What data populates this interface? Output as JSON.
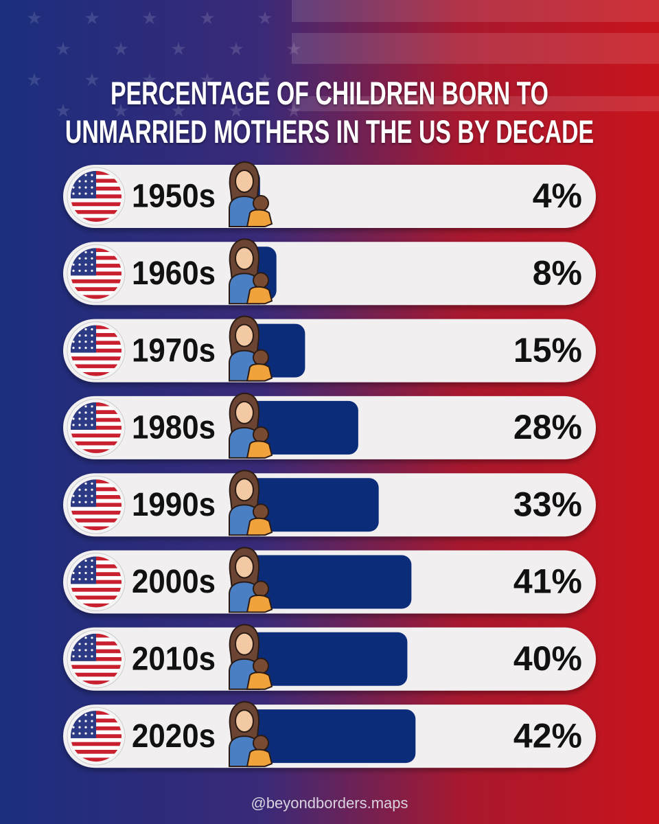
{
  "chart_data": {
    "type": "bar",
    "title": "PERCENTAGE OF CHILDREN BORN TO UNMARRIED MOTHERS IN THE US BY DECADE",
    "categories": [
      "1950s",
      "1960s",
      "1970s",
      "1980s",
      "1990s",
      "2000s",
      "2010s",
      "2020s"
    ],
    "values": [
      4,
      8,
      15,
      28,
      33,
      41,
      40,
      42
    ],
    "value_labels": [
      "4%",
      "8%",
      "15%",
      "28%",
      "33%",
      "41%",
      "40%",
      "42%"
    ],
    "color": "#0b2c79",
    "credit": "@beyondborders.maps"
  }
}
